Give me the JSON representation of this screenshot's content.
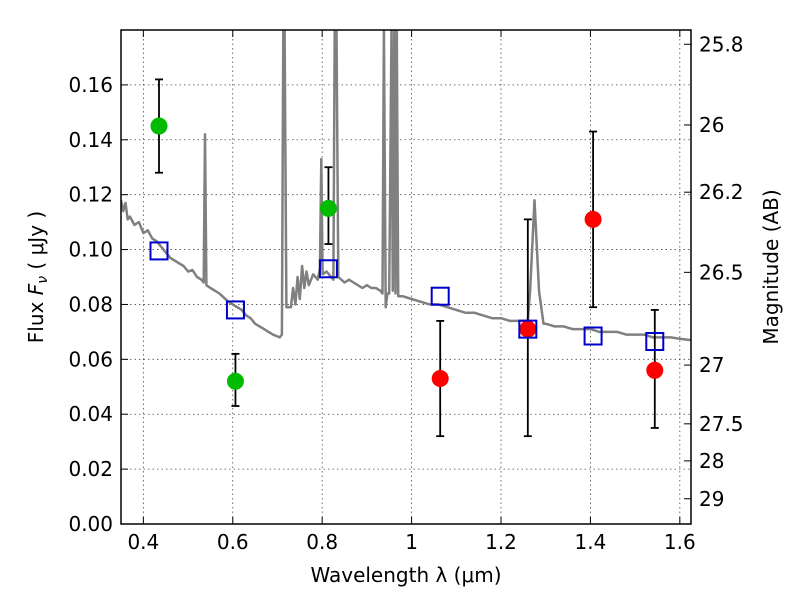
{
  "chart_data": {
    "type": "scatter",
    "xlabel": "Wavelength  λ (μm)",
    "ylabel": "Flux  F_ν  ( μJy )",
    "ylabel_right": "Magnitude (AB)",
    "xlim": [
      0.35,
      1.625
    ],
    "ylim": [
      0.0,
      0.18
    ],
    "x_ticks": [
      0.4,
      0.6,
      0.8,
      1.0,
      1.2,
      1.4,
      1.6
    ],
    "x_tick_labels": [
      "0.4",
      "0.6",
      "0.8",
      "1",
      "1.2",
      "1.4",
      "1.6"
    ],
    "y_ticks": [
      0.0,
      0.02,
      0.04,
      0.06,
      0.08,
      0.1,
      0.12,
      0.14,
      0.16
    ],
    "y_tick_labels": [
      "0.00",
      "0.02",
      "0.04",
      "0.06",
      "0.08",
      "0.10",
      "0.12",
      "0.14",
      "0.16"
    ],
    "right_ticks": [
      {
        "label": "25.8",
        "flux": 0.1748
      },
      {
        "label": "26",
        "flux": 0.1454
      },
      {
        "label": "26.2",
        "flux": 0.1209
      },
      {
        "label": "26.5",
        "flux": 0.0917
      },
      {
        "label": "27",
        "flux": 0.0579
      },
      {
        "label": "27.5",
        "flux": 0.0365
      },
      {
        "label": "28",
        "flux": 0.023
      },
      {
        "label": "29",
        "flux": 0.0092
      }
    ],
    "grid": true,
    "colors": {
      "green": "#00bb00",
      "red": "#ff0000",
      "blue": "#0000cc",
      "model": "#808080",
      "errorbar": "#000000"
    },
    "series": [
      {
        "marker": "circle",
        "color": "green",
        "points": [
          {
            "x": 0.435,
            "y": 0.145,
            "yerr_low": 0.128,
            "yerr_high": 0.162
          },
          {
            "x": 0.606,
            "y": 0.052,
            "yerr_low": 0.043,
            "yerr_high": 0.062
          },
          {
            "x": 0.814,
            "y": 0.115,
            "yerr_low": 0.102,
            "yerr_high": 0.13
          }
        ]
      },
      {
        "marker": "circle",
        "color": "red",
        "points": [
          {
            "x": 1.064,
            "y": 0.053,
            "yerr_low": 0.032,
            "yerr_high": 0.074
          },
          {
            "x": 1.26,
            "y": 0.071,
            "yerr_low": 0.032,
            "yerr_high": 0.111
          },
          {
            "x": 1.406,
            "y": 0.111,
            "yerr_low": 0.079,
            "yerr_high": 0.143
          },
          {
            "x": 1.544,
            "y": 0.056,
            "yerr_low": 0.035,
            "yerr_high": 0.078
          }
        ]
      },
      {
        "marker": "open-square",
        "color": "blue",
        "points": [
          {
            "x": 0.435,
            "y": 0.0995
          },
          {
            "x": 0.606,
            "y": 0.078
          },
          {
            "x": 0.814,
            "y": 0.093
          },
          {
            "x": 1.064,
            "y": 0.083
          },
          {
            "x": 1.26,
            "y": 0.071
          },
          {
            "x": 1.406,
            "y": 0.0685
          },
          {
            "x": 1.544,
            "y": 0.0665
          }
        ]
      },
      {
        "marker": "line",
        "color": "model",
        "points": [
          [
            0.35,
            0.118
          ],
          [
            0.355,
            0.114
          ],
          [
            0.36,
            0.117
          ],
          [
            0.365,
            0.111
          ],
          [
            0.37,
            0.112
          ],
          [
            0.38,
            0.109
          ],
          [
            0.39,
            0.11
          ],
          [
            0.4,
            0.106
          ],
          [
            0.41,
            0.107
          ],
          [
            0.42,
            0.104
          ],
          [
            0.43,
            0.103
          ],
          [
            0.44,
            0.101
          ],
          [
            0.45,
            0.099
          ],
          [
            0.46,
            0.097
          ],
          [
            0.47,
            0.096
          ],
          [
            0.48,
            0.095
          ],
          [
            0.49,
            0.094
          ],
          [
            0.5,
            0.092
          ],
          [
            0.51,
            0.0925
          ],
          [
            0.52,
            0.09
          ],
          [
            0.53,
            0.089
          ],
          [
            0.535,
            0.088
          ],
          [
            0.538,
            0.142
          ],
          [
            0.541,
            0.087
          ],
          [
            0.55,
            0.086
          ],
          [
            0.56,
            0.085
          ],
          [
            0.57,
            0.084
          ],
          [
            0.58,
            0.0825
          ],
          [
            0.59,
            0.081
          ],
          [
            0.6,
            0.08
          ],
          [
            0.61,
            0.079
          ],
          [
            0.62,
            0.078
          ],
          [
            0.63,
            0.076
          ],
          [
            0.64,
            0.075
          ],
          [
            0.65,
            0.073
          ],
          [
            0.66,
            0.072
          ],
          [
            0.67,
            0.071
          ],
          [
            0.68,
            0.07
          ],
          [
            0.69,
            0.069
          ],
          [
            0.705,
            0.068
          ],
          [
            0.71,
            0.069
          ],
          [
            0.713,
            0.18
          ],
          [
            0.716,
            0.18
          ],
          [
            0.72,
            0.079
          ],
          [
            0.73,
            0.079
          ],
          [
            0.735,
            0.086
          ],
          [
            0.74,
            0.08
          ],
          [
            0.745,
            0.09
          ],
          [
            0.75,
            0.082
          ],
          [
            0.755,
            0.094
          ],
          [
            0.76,
            0.086
          ],
          [
            0.765,
            0.092
          ],
          [
            0.77,
            0.087
          ],
          [
            0.78,
            0.091
          ],
          [
            0.79,
            0.089
          ],
          [
            0.795,
            0.093
          ],
          [
            0.798,
            0.133
          ],
          [
            0.801,
            0.091
          ],
          [
            0.81,
            0.092
          ],
          [
            0.82,
            0.09
          ],
          [
            0.825,
            0.089
          ],
          [
            0.828,
            0.18
          ],
          [
            0.832,
            0.18
          ],
          [
            0.836,
            0.09
          ],
          [
            0.85,
            0.088
          ],
          [
            0.86,
            0.089
          ],
          [
            0.87,
            0.088
          ],
          [
            0.88,
            0.087
          ],
          [
            0.89,
            0.086
          ],
          [
            0.9,
            0.087
          ],
          [
            0.91,
            0.086
          ],
          [
            0.92,
            0.086
          ],
          [
            0.93,
            0.085
          ],
          [
            0.935,
            0.084
          ],
          [
            0.938,
            0.18
          ],
          [
            0.942,
            0.079
          ],
          [
            0.946,
            0.084
          ],
          [
            0.95,
            0.084
          ],
          [
            0.955,
            0.18
          ],
          [
            0.958,
            0.085
          ],
          [
            0.961,
            0.18
          ],
          [
            0.964,
            0.084
          ],
          [
            0.967,
            0.18
          ],
          [
            0.97,
            0.083
          ],
          [
            0.98,
            0.083
          ],
          [
            1.0,
            0.082
          ],
          [
            1.02,
            0.081
          ],
          [
            1.04,
            0.08
          ],
          [
            1.06,
            0.08
          ],
          [
            1.08,
            0.079
          ],
          [
            1.1,
            0.078
          ],
          [
            1.12,
            0.077
          ],
          [
            1.14,
            0.077
          ],
          [
            1.16,
            0.076
          ],
          [
            1.18,
            0.075
          ],
          [
            1.2,
            0.075
          ],
          [
            1.22,
            0.074
          ],
          [
            1.24,
            0.074
          ],
          [
            1.26,
            0.074
          ],
          [
            1.265,
            0.085
          ],
          [
            1.275,
            0.118
          ],
          [
            1.285,
            0.085
          ],
          [
            1.295,
            0.073
          ],
          [
            1.3,
            0.073
          ],
          [
            1.32,
            0.072
          ],
          [
            1.34,
            0.072
          ],
          [
            1.36,
            0.071
          ],
          [
            1.38,
            0.071
          ],
          [
            1.4,
            0.071
          ],
          [
            1.42,
            0.07
          ],
          [
            1.44,
            0.07
          ],
          [
            1.46,
            0.07
          ],
          [
            1.48,
            0.069
          ],
          [
            1.5,
            0.069
          ],
          [
            1.52,
            0.069
          ],
          [
            1.54,
            0.068
          ],
          [
            1.56,
            0.068
          ],
          [
            1.58,
            0.068
          ],
          [
            1.6,
            0.0675
          ],
          [
            1.625,
            0.067
          ]
        ]
      }
    ]
  }
}
